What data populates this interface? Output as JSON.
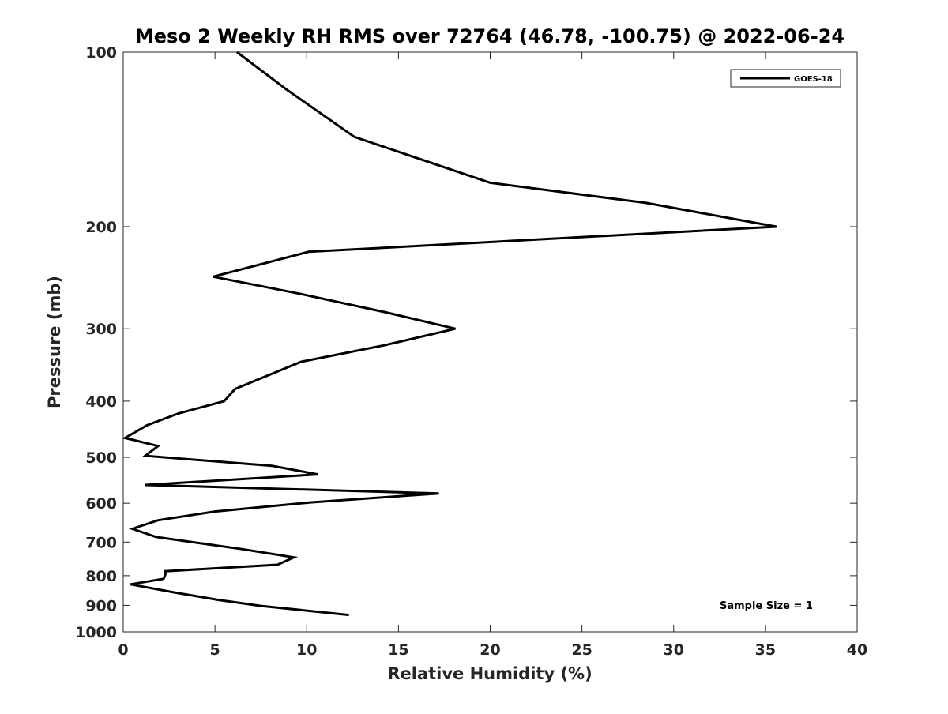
{
  "chart_data": {
    "type": "line",
    "title": "Meso 2 Weekly RH RMS over 72764 (46.78, -100.75) @ 2022-06-24",
    "xlabel": "Relative Humidity (%)",
    "ylabel": "Pressure (mb)",
    "xlim": [
      0,
      40
    ],
    "ylim": [
      1000,
      100
    ],
    "yscale": "log",
    "x_ticks": [
      0,
      5,
      10,
      15,
      20,
      25,
      30,
      35,
      40
    ],
    "y_ticks": [
      100,
      200,
      300,
      400,
      500,
      600,
      700,
      800,
      900,
      1000
    ],
    "grid": false,
    "legend": {
      "position": "top-right",
      "entries": [
        "GOES-18"
      ]
    },
    "annotation": "Sample Size = 1",
    "series": [
      {
        "name": "GOES-18",
        "color": "#000000",
        "points": [
          [
            6.2,
            100
          ],
          [
            8.9,
            116
          ],
          [
            12.6,
            140
          ],
          [
            20.0,
            168
          ],
          [
            28.5,
            182
          ],
          [
            35.6,
            200
          ],
          [
            10.1,
            221
          ],
          [
            4.9,
            244
          ],
          [
            9.6,
            261
          ],
          [
            14.3,
            281
          ],
          [
            18.1,
            300
          ],
          [
            14.3,
            320
          ],
          [
            9.7,
            342
          ],
          [
            7.8,
            362
          ],
          [
            6.1,
            381
          ],
          [
            5.5,
            400
          ],
          [
            3.0,
            420
          ],
          [
            1.3,
            440
          ],
          [
            0.1,
            463
          ],
          [
            1.9,
            478
          ],
          [
            1.2,
            497
          ],
          [
            8.1,
            517
          ],
          [
            10.6,
            535
          ],
          [
            1.2,
            558
          ],
          [
            17.2,
            577
          ],
          [
            10.2,
            598
          ],
          [
            5.0,
            620
          ],
          [
            1.9,
            642
          ],
          [
            0.5,
            664
          ],
          [
            1.8,
            686
          ],
          [
            6.5,
            720
          ],
          [
            9.3,
            744
          ],
          [
            8.4,
            766
          ],
          [
            2.3,
            786
          ],
          [
            2.3,
            796
          ],
          [
            2.2,
            810
          ],
          [
            0.4,
            828
          ],
          [
            2.8,
            855
          ],
          [
            5.2,
            881
          ],
          [
            7.5,
            902
          ],
          [
            12.3,
            935
          ]
        ]
      }
    ]
  }
}
